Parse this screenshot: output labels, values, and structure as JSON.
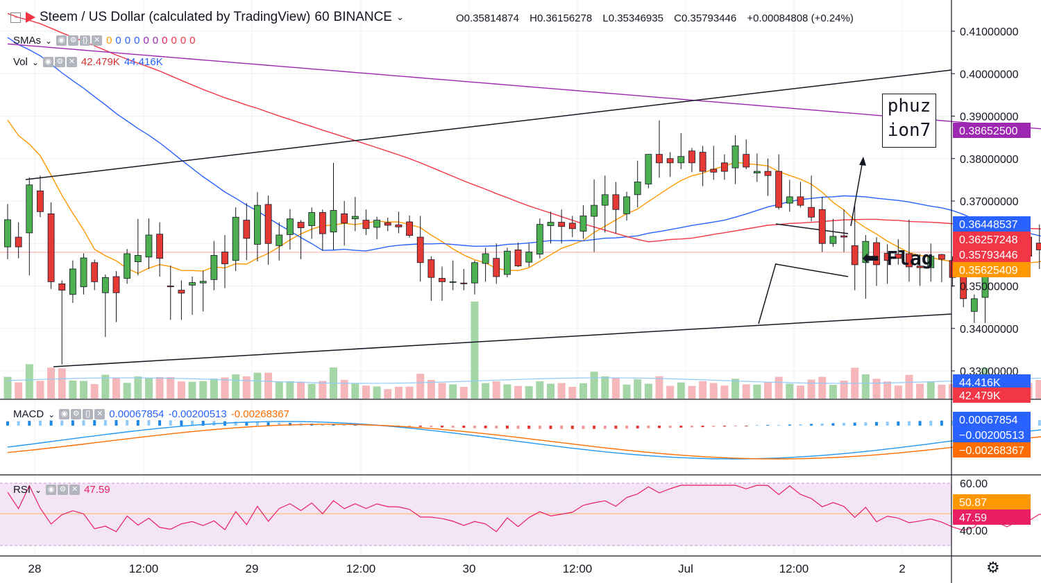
{
  "header": {
    "title": "Steem / US Dollar (calculated by TradingView)",
    "interval": "60",
    "exchange": "BINANCE",
    "open_label": "O",
    "open": "0.35814874",
    "high_label": "H",
    "high": "0.36156278",
    "low_label": "L",
    "low": "0.35346935",
    "close_label": "C",
    "close": "0.35793446",
    "change": "+0.00084808 (+0.24%)"
  },
  "indicators": {
    "smas": {
      "label": "SMAs",
      "values": [
        "0",
        "0",
        "0",
        "0",
        "0",
        "0",
        "0",
        "0",
        "0",
        "0"
      ]
    },
    "vol": {
      "label": "Vol",
      "value1": "42.479K",
      "value2": "44.416K"
    },
    "macd": {
      "label": "MACD",
      "hist": "0.00067854",
      "macd": "-0.00200513",
      "signal": "-0.00268367"
    },
    "rsi": {
      "label": "RSI",
      "value": "47.59"
    }
  },
  "price_axis": {
    "ticks": [
      "0.41000000",
      "0.40000000",
      "0.39000000",
      "0.38000000",
      "0.37000000",
      "0.35000000",
      "0.34000000",
      "0.33000000"
    ],
    "badges": [
      {
        "text": "0.38652500",
        "color": "#9c27b0"
      },
      {
        "text": "0.36448537",
        "color": "#2962ff"
      },
      {
        "text": "0.36257248",
        "color": "#f23645"
      },
      {
        "text": "0.35793446",
        "color": "#f23645"
      },
      {
        "text": "0.35625409",
        "color": "#ff9800"
      },
      {
        "text": "44.416K",
        "color": "#2962ff"
      },
      {
        "text": "42.479K",
        "color": "#f23645"
      }
    ]
  },
  "macd_axis": {
    "badges": [
      {
        "text": "0.00067854",
        "color": "#2962ff"
      },
      {
        "text": "−0.00200513",
        "color": "#2962ff"
      },
      {
        "text": "−0.00268367",
        "color": "#ff6d00"
      }
    ]
  },
  "rsi_axis": {
    "ticks": [
      "60.00",
      "40.00"
    ],
    "badges": [
      {
        "text": "50.87",
        "color": "#ff9800"
      },
      {
        "text": "47.59",
        "color": "#e91e63"
      }
    ]
  },
  "time_axis": {
    "ticks": [
      "28",
      "12:00",
      "29",
      "12:00",
      "30",
      "12:00",
      "Jul",
      "12:00",
      "2"
    ]
  },
  "annotations": {
    "watermark_line1": "phuz",
    "watermark_line2": "ion7",
    "flag_label": "Flag"
  },
  "colors": {
    "up": "#26a69a",
    "down": "#ef5350",
    "sma_red": "#f23645",
    "sma_blue": "#2962ff",
    "sma_orange": "#ff9800",
    "sma_purple": "#9c27b0",
    "rsi": "#e91e63"
  },
  "chart_data": {
    "type": "candlestick",
    "title": "Steem / US Dollar (calculated by TradingView)",
    "x_range": [
      "Jun 27 ~22:00",
      "Jul 1 ~19:00"
    ],
    "ylim": [
      0.3235,
      0.4165
    ],
    "candles": [
      {
        "o": 0.3592,
        "h": 0.3693,
        "l": 0.3563,
        "c": 0.3656
      },
      {
        "o": 0.3615,
        "h": 0.365,
        "l": 0.3565,
        "c": 0.3592
      },
      {
        "o": 0.3625,
        "h": 0.3756,
        "l": 0.3525,
        "c": 0.3738
      },
      {
        "o": 0.3724,
        "h": 0.376,
        "l": 0.3662,
        "c": 0.3675
      },
      {
        "o": 0.367,
        "h": 0.3697,
        "l": 0.3493,
        "c": 0.351
      },
      {
        "o": 0.3505,
        "h": 0.3513,
        "l": 0.3315,
        "c": 0.349
      },
      {
        "o": 0.348,
        "h": 0.356,
        "l": 0.346,
        "c": 0.354
      },
      {
        "o": 0.3498,
        "h": 0.3577,
        "l": 0.348,
        "c": 0.3566
      },
      {
        "o": 0.3555,
        "h": 0.3562,
        "l": 0.349,
        "c": 0.351
      },
      {
        "o": 0.3484,
        "h": 0.3527,
        "l": 0.338,
        "c": 0.352
      },
      {
        "o": 0.3522,
        "h": 0.3535,
        "l": 0.3415,
        "c": 0.3484
      },
      {
        "o": 0.3518,
        "h": 0.3587,
        "l": 0.3505,
        "c": 0.3576
      },
      {
        "o": 0.3557,
        "h": 0.3658,
        "l": 0.3525,
        "c": 0.3572
      },
      {
        "o": 0.3568,
        "h": 0.3659,
        "l": 0.354,
        "c": 0.362
      },
      {
        "o": 0.3622,
        "h": 0.365,
        "l": 0.3522,
        "c": 0.3565
      },
      {
        "o": 0.35,
        "h": 0.3548,
        "l": 0.342,
        "c": 0.3498
      },
      {
        "o": 0.349,
        "h": 0.3513,
        "l": 0.342,
        "c": 0.3483
      },
      {
        "o": 0.3502,
        "h": 0.3522,
        "l": 0.3432,
        "c": 0.3508
      },
      {
        "o": 0.3507,
        "h": 0.3536,
        "l": 0.344,
        "c": 0.3511
      },
      {
        "o": 0.3515,
        "h": 0.3606,
        "l": 0.349,
        "c": 0.3572
      },
      {
        "o": 0.358,
        "h": 0.362,
        "l": 0.3495,
        "c": 0.3552
      },
      {
        "o": 0.356,
        "h": 0.3685,
        "l": 0.3535,
        "c": 0.3662
      },
      {
        "o": 0.3655,
        "h": 0.3695,
        "l": 0.3561,
        "c": 0.3612
      },
      {
        "o": 0.3598,
        "h": 0.3721,
        "l": 0.3558,
        "c": 0.369
      },
      {
        "o": 0.3692,
        "h": 0.3713,
        "l": 0.355,
        "c": 0.36
      },
      {
        "o": 0.3595,
        "h": 0.365,
        "l": 0.356,
        "c": 0.362
      },
      {
        "o": 0.3621,
        "h": 0.3681,
        "l": 0.3586,
        "c": 0.3658
      },
      {
        "o": 0.365,
        "h": 0.3655,
        "l": 0.3563,
        "c": 0.3637
      },
      {
        "o": 0.3642,
        "h": 0.3685,
        "l": 0.3611,
        "c": 0.3673
      },
      {
        "o": 0.3673,
        "h": 0.368,
        "l": 0.3583,
        "c": 0.3623
      },
      {
        "o": 0.3627,
        "h": 0.379,
        "l": 0.3585,
        "c": 0.3678
      },
      {
        "o": 0.367,
        "h": 0.37,
        "l": 0.3595,
        "c": 0.3648
      },
      {
        "o": 0.3658,
        "h": 0.371,
        "l": 0.3629,
        "c": 0.3664
      },
      {
        "o": 0.3655,
        "h": 0.368,
        "l": 0.362,
        "c": 0.3635
      },
      {
        "o": 0.3638,
        "h": 0.3663,
        "l": 0.361,
        "c": 0.3655
      },
      {
        "o": 0.3649,
        "h": 0.3661,
        "l": 0.3629,
        "c": 0.3643
      },
      {
        "o": 0.3644,
        "h": 0.3675,
        "l": 0.3624,
        "c": 0.3639
      },
      {
        "o": 0.3651,
        "h": 0.3666,
        "l": 0.3614,
        "c": 0.3619
      },
      {
        "o": 0.3615,
        "h": 0.3665,
        "l": 0.351,
        "c": 0.3555
      },
      {
        "o": 0.3562,
        "h": 0.357,
        "l": 0.3465,
        "c": 0.352
      },
      {
        "o": 0.3518,
        "h": 0.3546,
        "l": 0.3465,
        "c": 0.351
      },
      {
        "o": 0.351,
        "h": 0.356,
        "l": 0.349,
        "c": 0.351
      },
      {
        "o": 0.3507,
        "h": 0.354,
        "l": 0.349,
        "c": 0.3505
      },
      {
        "o": 0.3507,
        "h": 0.356,
        "l": 0.348,
        "c": 0.3555
      },
      {
        "o": 0.3553,
        "h": 0.359,
        "l": 0.351,
        "c": 0.3576
      },
      {
        "o": 0.3565,
        "h": 0.36,
        "l": 0.3505,
        "c": 0.3522
      },
      {
        "o": 0.3527,
        "h": 0.359,
        "l": 0.352,
        "c": 0.3582
      },
      {
        "o": 0.3585,
        "h": 0.3602,
        "l": 0.3545,
        "c": 0.3547
      },
      {
        "o": 0.3556,
        "h": 0.36,
        "l": 0.3545,
        "c": 0.358
      },
      {
        "o": 0.3575,
        "h": 0.3659,
        "l": 0.3565,
        "c": 0.3645
      },
      {
        "o": 0.3642,
        "h": 0.3675,
        "l": 0.36,
        "c": 0.365
      },
      {
        "o": 0.365,
        "h": 0.368,
        "l": 0.36,
        "c": 0.364
      },
      {
        "o": 0.3648,
        "h": 0.3665,
        "l": 0.3615,
        "c": 0.3635
      },
      {
        "o": 0.3629,
        "h": 0.369,
        "l": 0.3611,
        "c": 0.3665
      },
      {
        "o": 0.3664,
        "h": 0.3751,
        "l": 0.358,
        "c": 0.369
      },
      {
        "o": 0.369,
        "h": 0.376,
        "l": 0.3626,
        "c": 0.3715
      },
      {
        "o": 0.3715,
        "h": 0.3745,
        "l": 0.3624,
        "c": 0.368
      },
      {
        "o": 0.367,
        "h": 0.3722,
        "l": 0.3654,
        "c": 0.371
      },
      {
        "o": 0.3715,
        "h": 0.3795,
        "l": 0.3685,
        "c": 0.3745
      },
      {
        "o": 0.374,
        "h": 0.3805,
        "l": 0.373,
        "c": 0.381
      },
      {
        "o": 0.381,
        "h": 0.389,
        "l": 0.3755,
        "c": 0.379
      },
      {
        "o": 0.38,
        "h": 0.3815,
        "l": 0.3757,
        "c": 0.379
      },
      {
        "o": 0.379,
        "h": 0.386,
        "l": 0.3775,
        "c": 0.3805
      },
      {
        "o": 0.3818,
        "h": 0.3825,
        "l": 0.3768,
        "c": 0.379
      },
      {
        "o": 0.3815,
        "h": 0.383,
        "l": 0.3735,
        "c": 0.377
      },
      {
        "o": 0.3775,
        "h": 0.383,
        "l": 0.375,
        "c": 0.3768
      },
      {
        "o": 0.379,
        "h": 0.381,
        "l": 0.375,
        "c": 0.377
      },
      {
        "o": 0.3778,
        "h": 0.3855,
        "l": 0.374,
        "c": 0.383
      },
      {
        "o": 0.381,
        "h": 0.3845,
        "l": 0.3775,
        "c": 0.378
      },
      {
        "o": 0.3766,
        "h": 0.3812,
        "l": 0.3745,
        "c": 0.377
      },
      {
        "o": 0.377,
        "h": 0.38,
        "l": 0.3712,
        "c": 0.376
      },
      {
        "o": 0.377,
        "h": 0.381,
        "l": 0.368,
        "c": 0.3685
      },
      {
        "o": 0.3695,
        "h": 0.375,
        "l": 0.3675,
        "c": 0.371
      },
      {
        "o": 0.371,
        "h": 0.3745,
        "l": 0.3685,
        "c": 0.369
      },
      {
        "o": 0.3685,
        "h": 0.376,
        "l": 0.3652,
        "c": 0.3662
      },
      {
        "o": 0.368,
        "h": 0.371,
        "l": 0.358,
        "c": 0.36
      },
      {
        "o": 0.36,
        "h": 0.3658,
        "l": 0.3592,
        "c": 0.3617
      },
      {
        "o": 0.3618,
        "h": 0.368,
        "l": 0.358,
        "c": 0.3615
      },
      {
        "o": 0.3595,
        "h": 0.3693,
        "l": 0.349,
        "c": 0.355
      },
      {
        "o": 0.3555,
        "h": 0.362,
        "l": 0.347,
        "c": 0.3605
      },
      {
        "o": 0.3602,
        "h": 0.3615,
        "l": 0.35,
        "c": 0.355
      },
      {
        "o": 0.3577,
        "h": 0.3598,
        "l": 0.3505,
        "c": 0.356
      },
      {
        "o": 0.3575,
        "h": 0.361,
        "l": 0.355,
        "c": 0.3565
      },
      {
        "o": 0.3576,
        "h": 0.3656,
        "l": 0.351,
        "c": 0.3545
      },
      {
        "o": 0.3547,
        "h": 0.3575,
        "l": 0.35,
        "c": 0.3543
      },
      {
        "o": 0.3543,
        "h": 0.36,
        "l": 0.351,
        "c": 0.357
      },
      {
        "o": 0.3574,
        "h": 0.3576,
        "l": 0.3509,
        "c": 0.3563
      },
      {
        "o": 0.356,
        "h": 0.357,
        "l": 0.3498,
        "c": 0.352
      },
      {
        "o": 0.3535,
        "h": 0.356,
        "l": 0.345,
        "c": 0.347
      },
      {
        "o": 0.344,
        "h": 0.348,
        "l": 0.3413,
        "c": 0.347
      },
      {
        "o": 0.3473,
        "h": 0.3615,
        "l": 0.3413,
        "c": 0.3596
      },
      {
        "o": 0.361,
        "h": 0.3655,
        "l": 0.358,
        "c": 0.362
      },
      {
        "o": 0.3602,
        "h": 0.365,
        "l": 0.358,
        "c": 0.359
      },
      {
        "o": 0.3595,
        "h": 0.365,
        "l": 0.3572,
        "c": 0.359
      },
      {
        "o": 0.3615,
        "h": 0.363,
        "l": 0.355,
        "c": 0.357
      },
      {
        "o": 0.3601,
        "h": 0.3645,
        "l": 0.354,
        "c": 0.3585
      },
      {
        "o": 0.3575,
        "h": 0.362,
        "l": 0.355,
        "c": 0.358
      },
      {
        "o": 0.3571,
        "h": 0.359,
        "l": 0.3555,
        "c": 0.3576
      },
      {
        "o": 0.3581,
        "h": 0.3616,
        "l": 0.3535,
        "c": 0.3579
      }
    ]
  }
}
